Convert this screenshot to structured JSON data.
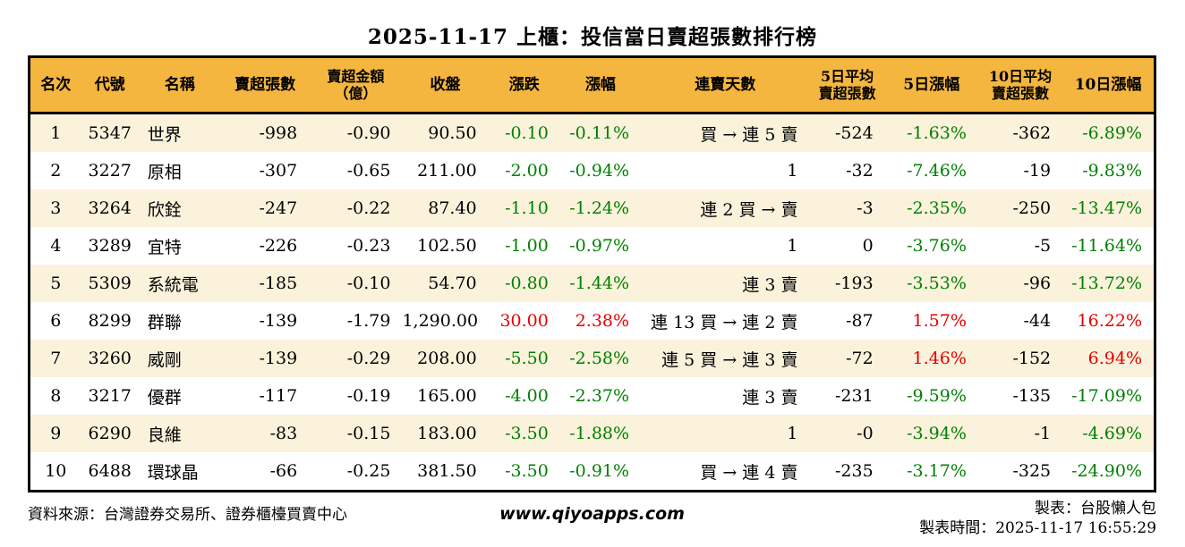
{
  "title": "2025-11-17 上櫃：投信當日賣超張數排行榜",
  "colors": {
    "header_bg": "#F4B63F",
    "stripe": "#FBF2DC",
    "up_red": "#E60000",
    "down_green": "#008000",
    "border": "#000000"
  },
  "chart_data": {
    "type": "table",
    "title": "2025-11-17 上櫃：投信當日賣超張數排行榜",
    "columns": [
      "名次",
      "代號",
      "名稱",
      "賣超張數",
      "賣超金額\n（億）",
      "收盤",
      "漲跌",
      "漲幅",
      "連賣天數",
      "5日平均\n賣超張數",
      "5日漲幅",
      "10日平均\n賣超張數",
      "10日漲幅"
    ],
    "rows": [
      [
        "1",
        "5347",
        "世界",
        "-998",
        "-0.90",
        "90.50",
        "-0.10",
        "-0.11%",
        "買 → 連 5 賣",
        "-524",
        "-1.63%",
        "-362",
        "-6.89%"
      ],
      [
        "2",
        "3227",
        "原相",
        "-307",
        "-0.65",
        "211.00",
        "-2.00",
        "-0.94%",
        "1",
        "-32",
        "-7.46%",
        "-19",
        "-9.83%"
      ],
      [
        "3",
        "3264",
        "欣銓",
        "-247",
        "-0.22",
        "87.40",
        "-1.10",
        "-1.24%",
        "連 2 買 → 賣",
        "-3",
        "-2.35%",
        "-250",
        "-13.47%"
      ],
      [
        "4",
        "3289",
        "宜特",
        "-226",
        "-0.23",
        "102.50",
        "-1.00",
        "-0.97%",
        "1",
        "0",
        "-3.76%",
        "-5",
        "-11.64%"
      ],
      [
        "5",
        "5309",
        "系統電",
        "-185",
        "-0.10",
        "54.70",
        "-0.80",
        "-1.44%",
        "連 3 賣",
        "-193",
        "-3.53%",
        "-96",
        "-13.72%"
      ],
      [
        "6",
        "8299",
        "群聯",
        "-139",
        "-1.79",
        "1,290.00",
        "30.00",
        "2.38%",
        "連 13 買 → 連 2 賣",
        "-87",
        "1.57%",
        "-44",
        "16.22%"
      ],
      [
        "7",
        "3260",
        "威剛",
        "-139",
        "-0.29",
        "208.00",
        "-5.50",
        "-2.58%",
        "連 5 買 → 連 3 賣",
        "-72",
        "1.46%",
        "-152",
        "6.94%"
      ],
      [
        "8",
        "3217",
        "優群",
        "-117",
        "-0.19",
        "165.00",
        "-4.00",
        "-2.37%",
        "連 3 賣",
        "-231",
        "-9.59%",
        "-135",
        "-17.09%"
      ],
      [
        "9",
        "6290",
        "良維",
        "-83",
        "-0.15",
        "183.00",
        "-3.50",
        "-1.88%",
        "1",
        "-0",
        "-3.94%",
        "-1",
        "-4.69%"
      ],
      [
        "10",
        "6488",
        "環球晶",
        "-66",
        "-0.25",
        "381.50",
        "-3.50",
        "-0.91%",
        "買 → 連 4 賣",
        "-235",
        "-3.17%",
        "-325",
        "-24.90%"
      ]
    ]
  },
  "footer": {
    "source": "資料來源：台灣證券交易所、證券櫃檯買賣中心",
    "site": "www.qiyoapps.com",
    "maker": "製表：台股懶人包",
    "made_time": "製表時間：2025-11-17 16:55:29"
  }
}
